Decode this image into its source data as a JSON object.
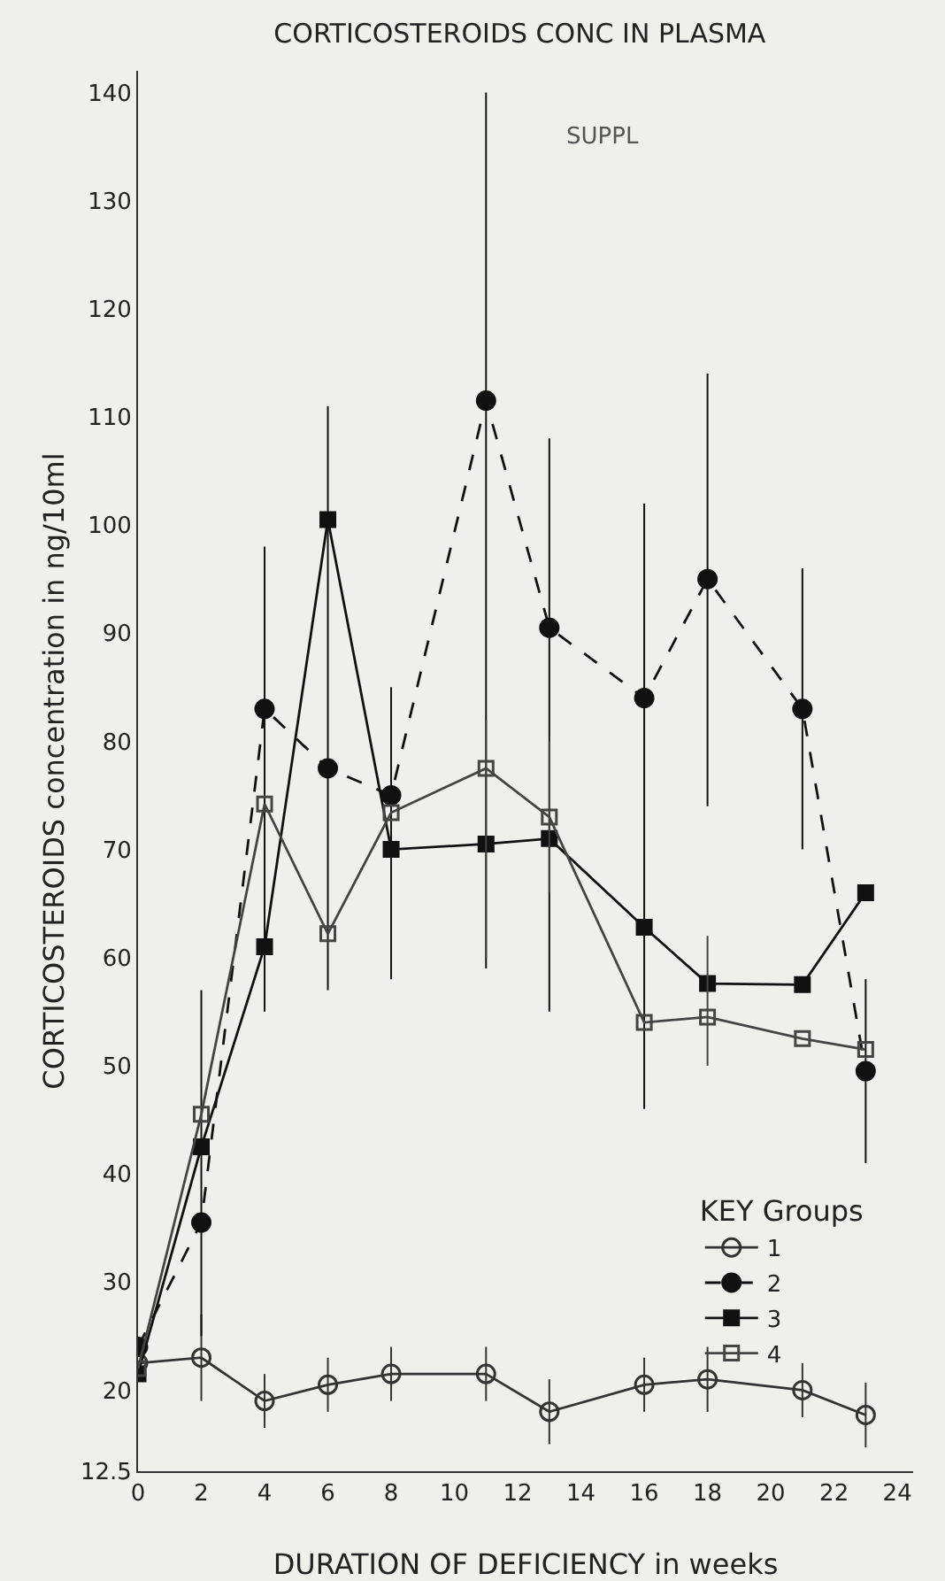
{
  "chart_data": {
    "type": "line",
    "title": "CORTICOSTEROIDS CONC IN PLASMA",
    "xlabel": "DURATION OF DEFICIENCY in weeks",
    "ylabel": "CORTICOSTEROIDS concentration in ng/10ml",
    "legend_title": "KEY Groups",
    "annotations": [
      "SUPPL"
    ],
    "x": [
      0,
      2,
      4,
      6,
      8,
      11,
      13,
      16,
      18,
      21,
      23
    ],
    "series": [
      {
        "name": "1",
        "color": "#333333",
        "marker": "circle-open",
        "line_style": "solid",
        "values": [
          22.5,
          23,
          19,
          20.5,
          21.5,
          21.5,
          18,
          20.5,
          21,
          20,
          17.7
        ],
        "errors": [
          null,
          [
            19,
            27
          ],
          2.5,
          2.5,
          2.5,
          2.5,
          3,
          2.5,
          3,
          2.5,
          3
        ]
      },
      {
        "name": "2",
        "color": "#111111",
        "marker": "circle",
        "line_style": "dashed",
        "values": [
          24,
          35.5,
          83,
          77.5,
          75,
          111.5,
          90.5,
          84,
          95,
          83,
          49.5
        ],
        "errors": [
          null,
          null,
          [
            55,
            98
          ],
          null,
          [
            58,
            85
          ],
          [
            59,
            140
          ],
          [
            55,
            108
          ],
          [
            46,
            102
          ],
          [
            74,
            114
          ],
          [
            70,
            96
          ],
          [
            41,
            58
          ]
        ]
      },
      {
        "name": "3",
        "color": "#111111",
        "marker": "square",
        "line_style": "solid",
        "values": [
          21.5,
          42.5,
          61,
          100.5,
          70,
          70.5,
          71,
          62.8,
          57.6,
          57.5,
          66
        ],
        "errors": [
          null,
          [
            25,
            57
          ],
          null,
          [
            57,
            111
          ],
          null,
          null,
          null,
          null,
          null,
          null,
          null
        ]
      },
      {
        "name": "4",
        "color": "#444444",
        "marker": "square-open",
        "line_style": "solid",
        "values": [
          22,
          45.5,
          74.2,
          62.2,
          73.4,
          77.5,
          73,
          54,
          54.5,
          52.5,
          51.5
        ],
        "errors": [
          null,
          null,
          null,
          null,
          null,
          [
            60,
            82
          ],
          [
            66,
            80
          ],
          null,
          [
            50,
            62
          ],
          null,
          null
        ]
      }
    ],
    "xlim": [
      0,
      24.5
    ],
    "xticks": [
      0,
      2,
      4,
      6,
      8,
      10,
      12,
      14,
      16,
      18,
      20,
      22,
      24
    ],
    "ylim": [
      12.5,
      142
    ],
    "yticks": [
      12.5,
      20,
      30,
      40,
      50,
      60,
      70,
      80,
      90,
      100,
      110,
      120,
      130,
      140
    ],
    "grid": false,
    "legend": "right"
  }
}
